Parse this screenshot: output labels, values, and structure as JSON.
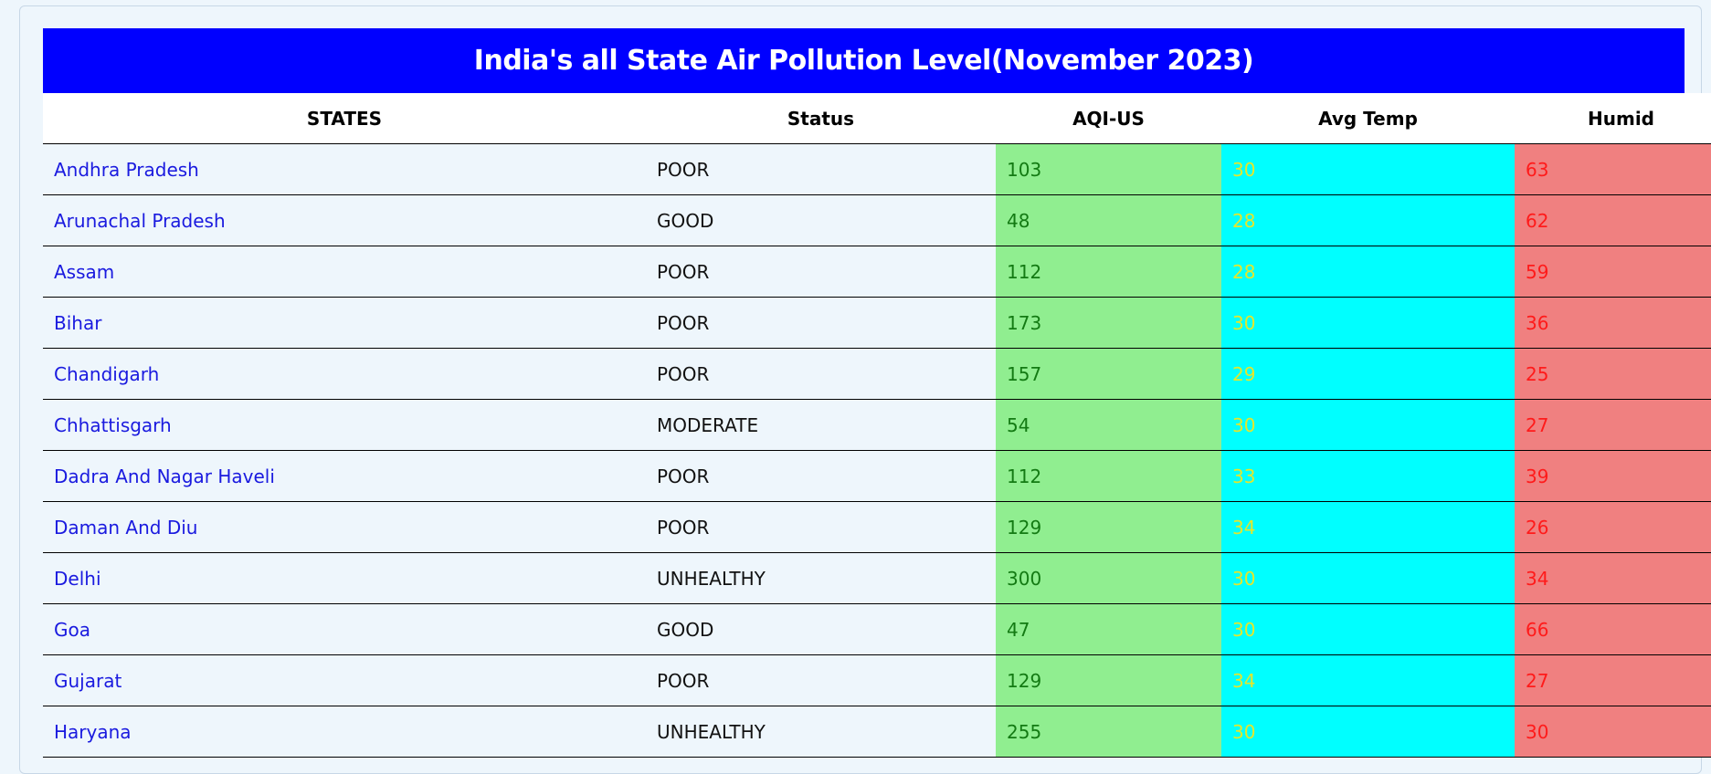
{
  "page": {
    "title": "India's all State Air Pollution Level(November 2023)"
  },
  "table": {
    "headers": [
      "STATES",
      "Status",
      "AQI-US",
      "Avg Temp",
      "Humid"
    ],
    "rows": [
      [
        "Andhra Pradesh",
        "POOR",
        "103",
        "30",
        "63"
      ],
      [
        "Arunachal Pradesh",
        "GOOD",
        "48",
        "28",
        "62"
      ],
      [
        "Assam",
        "POOR",
        "112",
        "28",
        "59"
      ],
      [
        "Bihar",
        "POOR",
        "173",
        "30",
        "36"
      ],
      [
        "Chandigarh",
        "POOR",
        "157",
        "29",
        "25"
      ],
      [
        "Chhattisgarh",
        "MODERATE",
        "54",
        "30",
        "27"
      ],
      [
        "Dadra And Nagar Haveli",
        "POOR",
        "112",
        "33",
        "39"
      ],
      [
        "Daman And Diu",
        "POOR",
        "129",
        "34",
        "26"
      ],
      [
        "Delhi",
        "UNHEALTHY",
        "300",
        "30",
        "34"
      ],
      [
        "Goa",
        "GOOD",
        "47",
        "30",
        "66"
      ],
      [
        "Gujarat",
        "POOR",
        "129",
        "34",
        "27"
      ],
      [
        "Haryana",
        "UNHEALTHY",
        "255",
        "30",
        "30"
      ]
    ]
  },
  "colors": {
    "title_bg": "#0000ff",
    "title_text": "#ffffff",
    "state_text": "#1a1adf",
    "aqi_bg": "#90ee90",
    "aqi_text": "#137a13",
    "temp_bg": "#00ffff",
    "temp_text": "#e6e62a",
    "humid_bg": "#f08080",
    "humid_text": "#ff1a1a"
  }
}
